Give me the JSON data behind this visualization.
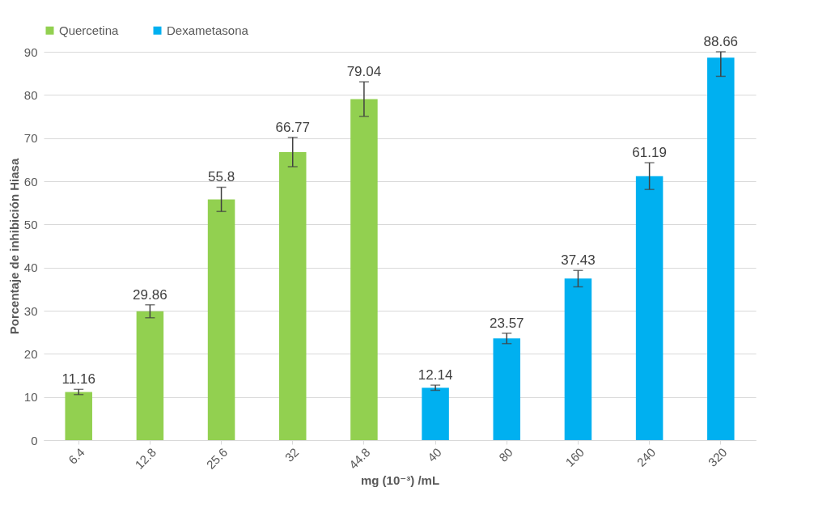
{
  "chart_data": {
    "type": "bar",
    "xlabel": "mg (10⁻³)  /mL",
    "ylabel": "Porcentaje de inhibición Hiasa",
    "categories": [
      "6.4",
      "12.8",
      "25.6",
      "32",
      "44.8",
      "40",
      "80",
      "160",
      "240",
      "320"
    ],
    "series": [
      {
        "name": "Quercetina",
        "color": "#92d050",
        "values": [
          11.16,
          29.86,
          55.8,
          66.77,
          79.04,
          null,
          null,
          null,
          null,
          null
        ],
        "errors": [
          0.6,
          1.5,
          2.8,
          3.4,
          4.0,
          null,
          null,
          null,
          null,
          null
        ]
      },
      {
        "name": "Dexametasona",
        "color": "#00b0f0",
        "values": [
          null,
          null,
          null,
          null,
          null,
          12.14,
          23.57,
          37.43,
          61.19,
          88.66
        ],
        "errors": [
          null,
          null,
          null,
          null,
          null,
          0.6,
          1.2,
          1.9,
          3.1,
          [
            84.3,
            90
          ]
        ]
      }
    ],
    "ylim": [
      0,
      90
    ],
    "yticks": [
      0,
      10,
      20,
      30,
      40,
      50,
      60,
      70,
      80,
      90
    ],
    "grid": "y",
    "legend": "top",
    "data_labels": true
  }
}
